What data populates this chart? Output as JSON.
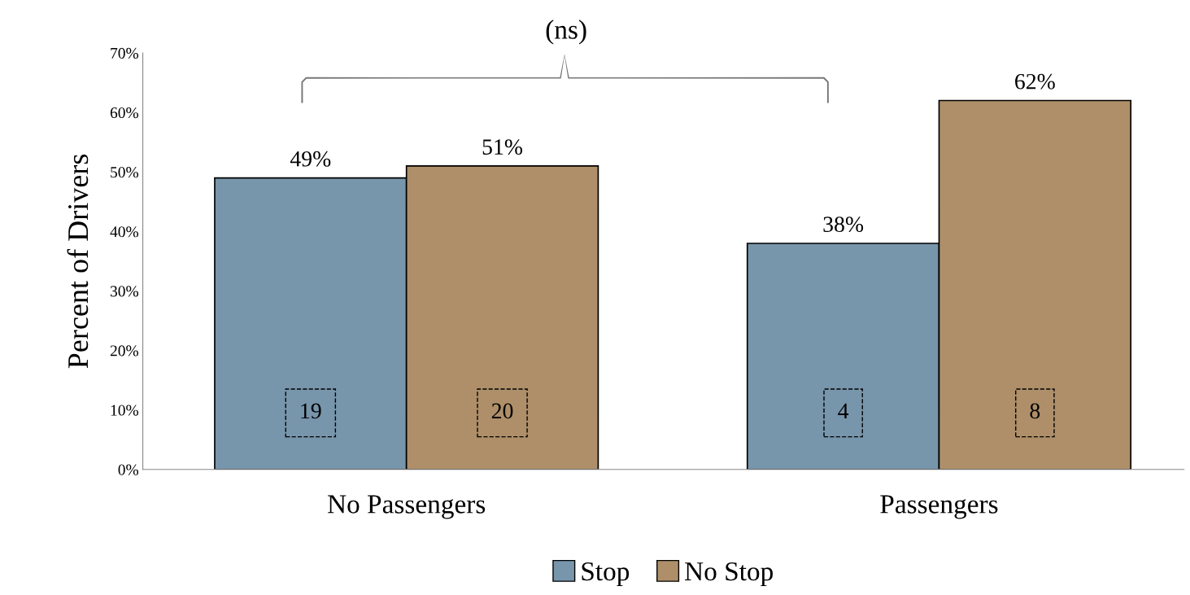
{
  "chart_data": {
    "type": "bar",
    "ylabel": "Percent of Drivers",
    "categories": [
      "No Passengers",
      "Passengers"
    ],
    "series": [
      {
        "name": "Stop",
        "color": "#7795ab",
        "values": [
          49,
          38
        ],
        "value_labels": [
          "49%",
          "38%"
        ]
      },
      {
        "name": "No Stop",
        "color": "#ae8f69",
        "values": [
          51,
          62
        ],
        "value_labels": [
          "51%",
          "62%"
        ]
      }
    ],
    "ylim": [
      0,
      70
    ],
    "yticks": [
      {
        "value": 0,
        "label": "0%"
      },
      {
        "value": 10,
        "label": "10%"
      },
      {
        "value": 20,
        "label": "20%"
      },
      {
        "value": 30,
        "label": "30%"
      },
      {
        "value": 40,
        "label": "40%"
      },
      {
        "value": 50,
        "label": "50%"
      },
      {
        "value": 60,
        "label": "60%"
      },
      {
        "value": 70,
        "label": "70%"
      }
    ],
    "annotations": [
      "(ns)",
      "19",
      "20",
      "4",
      "8"
    ],
    "grid": false,
    "legend": "bottom"
  }
}
